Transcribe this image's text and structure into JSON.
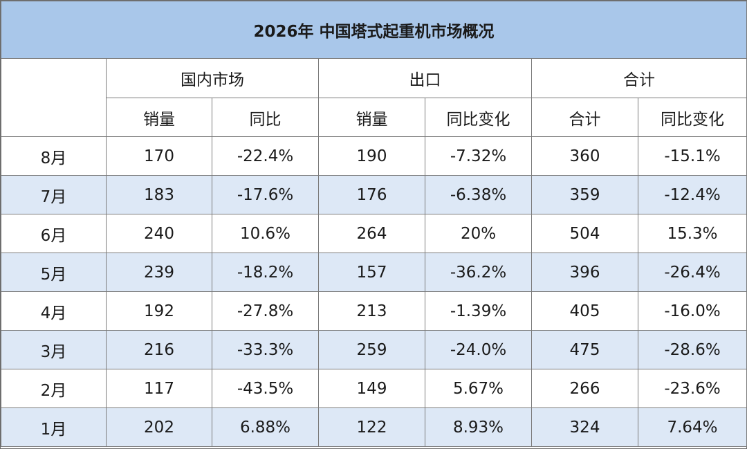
{
  "title": "2026年 中国塔式起重机市场概况",
  "groups": {
    "domestic": "国内市场",
    "export": "出口",
    "total": "合计"
  },
  "subheaders": {
    "domestic_sales": "销量",
    "domestic_yoy": "同比",
    "export_sales": "销量",
    "export_yoy": "同比变化",
    "total_sum": "合计",
    "total_yoy": "同比变化"
  },
  "rows": [
    {
      "month": "8月",
      "domestic_sales": "170",
      "domestic_yoy": "-22.4%",
      "export_sales": "190",
      "export_yoy": "-7.32%",
      "total": "360",
      "total_yoy": "-15.1%"
    },
    {
      "month": "7月",
      "domestic_sales": "183",
      "domestic_yoy": "-17.6%",
      "export_sales": "176",
      "export_yoy": "-6.38%",
      "total": "359",
      "total_yoy": "-12.4%"
    },
    {
      "month": "6月",
      "domestic_sales": "240",
      "domestic_yoy": "10.6%",
      "export_sales": "264",
      "export_yoy": "20%",
      "total": "504",
      "total_yoy": "15.3%"
    },
    {
      "month": "5月",
      "domestic_sales": "239",
      "domestic_yoy": "-18.2%",
      "export_sales": "157",
      "export_yoy": "-36.2%",
      "total": "396",
      "total_yoy": "-26.4%"
    },
    {
      "month": "4月",
      "domestic_sales": "192",
      "domestic_yoy": "-27.8%",
      "export_sales": "213",
      "export_yoy": "-1.39%",
      "total": "405",
      "total_yoy": "-16.0%"
    },
    {
      "month": "3月",
      "domestic_sales": "216",
      "domestic_yoy": "-33.3%",
      "export_sales": "259",
      "export_yoy": "-24.0%",
      "total": "475",
      "total_yoy": "-28.6%"
    },
    {
      "month": "2月",
      "domestic_sales": "117",
      "domestic_yoy": "-43.5%",
      "export_sales": "149",
      "export_yoy": "5.67%",
      "total": "266",
      "total_yoy": "-23.6%"
    },
    {
      "month": "1月",
      "domestic_sales": "202",
      "domestic_yoy": "6.88%",
      "export_sales": "122",
      "export_yoy": "8.93%",
      "total": "324",
      "total_yoy": "7.64%"
    }
  ],
  "colors": {
    "title_bg": "#a9c7ea",
    "shade_row_bg": "#dde8f6",
    "border": "#7a7a7a"
  }
}
